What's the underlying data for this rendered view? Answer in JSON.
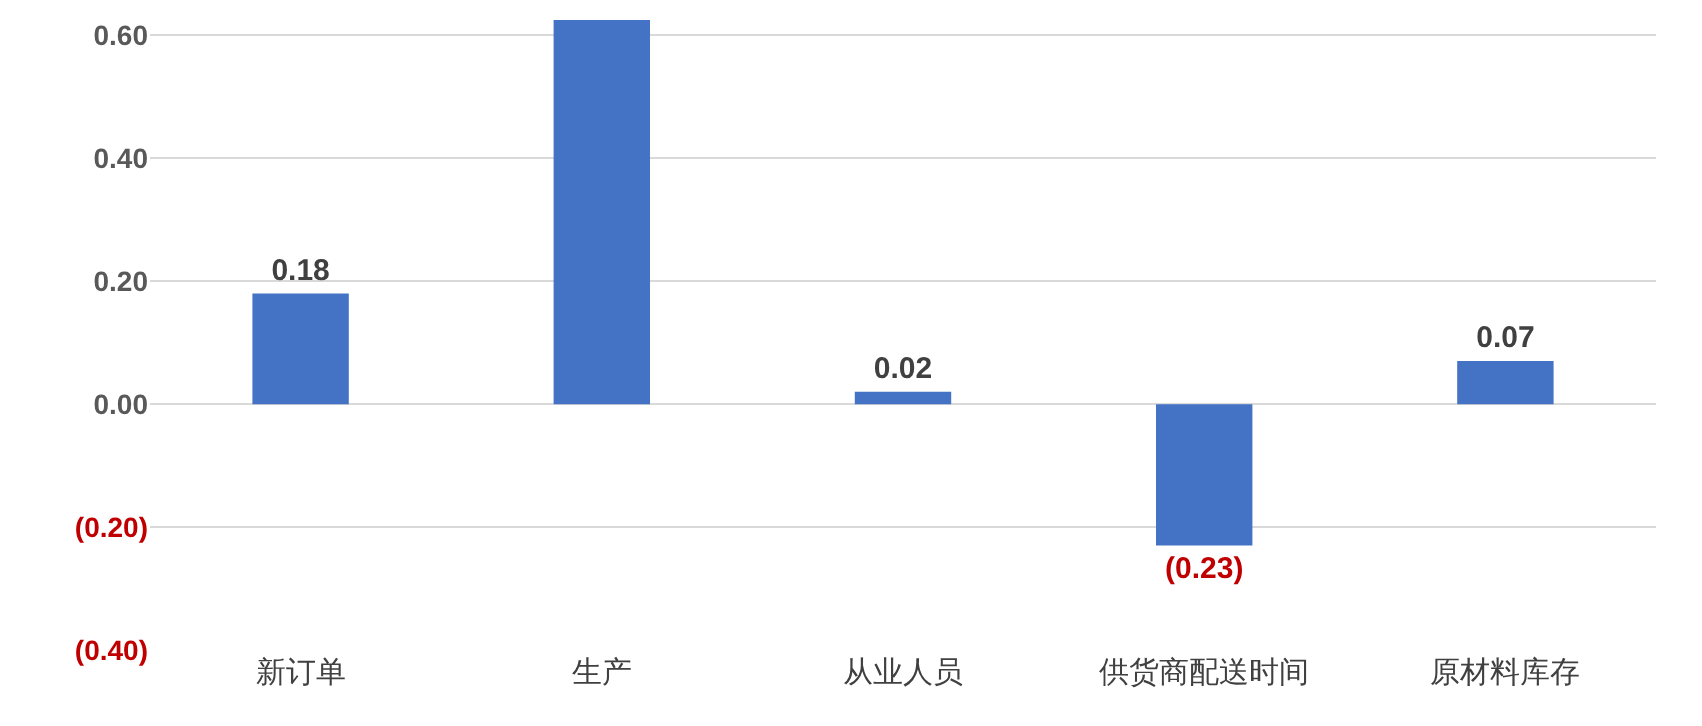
{
  "chart_data": {
    "type": "bar",
    "categories": [
      "新订单",
      "生产",
      "从业人员",
      "供货商配送时间",
      "原材料库存"
    ],
    "values": [
      0.18,
      0.625,
      0.02,
      -0.23,
      0.07
    ],
    "value_labels": [
      "0.18",
      null,
      "0.02",
      "(0.23)",
      "0.07"
    ],
    "color": "#4472c4",
    "ylim": [
      -0.4,
      0.625
    ],
    "yticks": [
      {
        "value": -0.4,
        "label": "(0.40)"
      },
      {
        "value": -0.2,
        "label": "(0.20)"
      },
      {
        "value": 0,
        "label": "0.00"
      },
      {
        "value": 0.2,
        "label": "0.20"
      },
      {
        "value": 0.4,
        "label": "0.40"
      },
      {
        "value": 0.6,
        "label": "0.60"
      }
    ],
    "grid": "y",
    "legend": false
  }
}
